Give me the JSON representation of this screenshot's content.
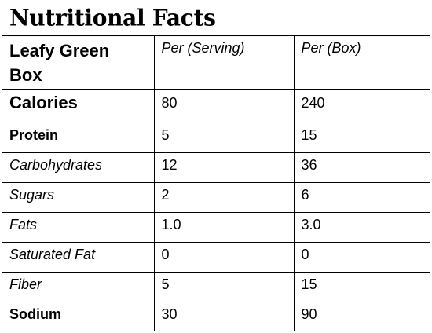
{
  "title": "Nutritional Facts",
  "header": {
    "name": "Leafy Green Box",
    "col_serving": "Per (Serving)",
    "col_box": "Per (Box)"
  },
  "rows": [
    {
      "label": "Calories",
      "serving": "80",
      "box": "240"
    },
    {
      "label": "Protein",
      "serving": "5",
      "box": "15"
    },
    {
      "label": "Carbohydrates",
      "serving": "12",
      "box": "36"
    },
    {
      "label": "Sugars",
      "serving": "2",
      "box": "6"
    },
    {
      "label": "Fats",
      "serving": "1.0",
      "box": "3.0"
    },
    {
      "label": "Saturated Fat",
      "serving": "0",
      "box": "0"
    },
    {
      "label": "Fiber",
      "serving": "5",
      "box": "15"
    },
    {
      "label": "Sodium",
      "serving": "30",
      "box": "90"
    }
  ]
}
